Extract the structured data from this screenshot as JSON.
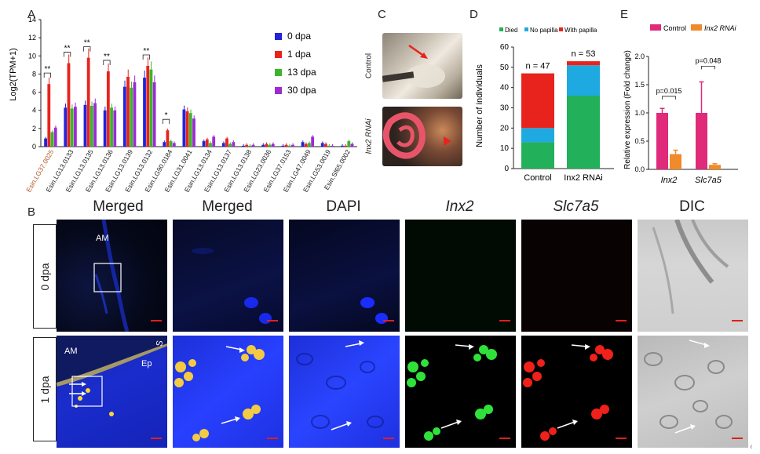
{
  "panel_letters": {
    "a": "A",
    "b": "B",
    "c": "C",
    "d": "D",
    "e": "E"
  },
  "panelA": {
    "ylabel": "Log2(TPM+1)",
    "yticks": [
      "0",
      "2",
      "4",
      "6",
      "8",
      "10",
      "12",
      "14"
    ],
    "legend": [
      "0 dpa",
      "1 dpa",
      "13 dpa",
      "30 dpa"
    ],
    "colors": [
      "#2323d8",
      "#e8231e",
      "#3cb52a",
      "#9c2bd4"
    ]
  },
  "panelC": {
    "top_label": "Control",
    "bottom_label": "Inx2 RNAi"
  },
  "panelD": {
    "ylabel": "Number of individuals",
    "legend": [
      "Died",
      "No papilla",
      "With papilla"
    ],
    "colors": [
      "#22b05a",
      "#1eaae0",
      "#e8231e"
    ],
    "n_labels": [
      "n = 47",
      "n = 53"
    ],
    "yticks": [
      "0",
      "10",
      "20",
      "30",
      "40",
      "50",
      "60"
    ]
  },
  "panelE": {
    "ylabel": "Relative expression (Fold change)",
    "legend": [
      "Control",
      "Inx2 RNAi"
    ],
    "colors": [
      "#e02a7a",
      "#f08a2a"
    ],
    "p_values": [
      "p=0.015",
      "p=0.048"
    ],
    "yticks": [
      "0.0",
      "0.5",
      "1.0",
      "1.5",
      "2.0"
    ],
    "genes": [
      "Inx2",
      "Slc7a5"
    ]
  },
  "panelB": {
    "headers": [
      "Merged",
      "Merged",
      "DAPI",
      "Inx2",
      "Slc7a5",
      "DIC"
    ],
    "rows": [
      "0 dpa",
      "1 dpa"
    ],
    "labels": {
      "am": "AM",
      "s": "S",
      "ep": "Ep"
    }
  },
  "chart_data": [
    {
      "type": "bar",
      "ylabel": "Log2(TPM+1)",
      "ylim": [
        0,
        14
      ],
      "categories": [
        "Esin.LG37.0025",
        "Esin.LG13.0133",
        "Esin.LG13.0135",
        "Esin.LG13.0136",
        "Esin.LG13.0139",
        "Esin.LG13.0132",
        "Esin.LG90.0184",
        "Esin.LG31.0041",
        "Esin.LG13.0134",
        "Esin.LG13.0137",
        "Esin.LG13.0138",
        "Esin.LG23.0036",
        "Esin.LG37.0153",
        "Esin.LG47.0049",
        "Esin.LG53.0019",
        "Esin.Sf65.0002"
      ],
      "series": [
        {
          "name": "0 dpa",
          "values": [
            0.9,
            4.3,
            4.6,
            4.0,
            6.6,
            7.6,
            0.5,
            4.1,
            0.6,
            0.4,
            0.1,
            0.2,
            0.1,
            0.5,
            0.4,
            0.1
          ]
        },
        {
          "name": "1 dpa",
          "values": [
            6.9,
            9.2,
            9.8,
            8.3,
            7.7,
            8.9,
            1.8,
            3.9,
            0.8,
            0.9,
            0.2,
            0.3,
            0.2,
            0.3,
            0.3,
            0.1
          ]
        },
        {
          "name": "13 dpa",
          "values": [
            1.6,
            4.2,
            4.5,
            4.3,
            6.5,
            8.5,
            0.6,
            3.7,
            0.4,
            0.3,
            0.1,
            0.2,
            0.1,
            0.4,
            0.1,
            0.6
          ]
        },
        {
          "name": "30 dpa",
          "values": [
            2.1,
            4.4,
            4.8,
            4.0,
            7.1,
            7.1,
            0.4,
            3.1,
            1.1,
            0.5,
            0.2,
            0.3,
            0.2,
            1.1,
            0.1,
            0.3
          ]
        }
      ],
      "significance": [
        {
          "category": "Esin.LG37.0025",
          "mark": "**"
        },
        {
          "category": "Esin.LG13.0133",
          "mark": "**"
        },
        {
          "category": "Esin.LG13.0135",
          "mark": "**"
        },
        {
          "category": "Esin.LG13.0136",
          "mark": "**"
        },
        {
          "category": "Esin.LG13.0132",
          "mark": "**"
        },
        {
          "category": "Esin.LG90.0184",
          "mark": "*"
        }
      ],
      "legend_position": "top-right"
    },
    {
      "type": "bar",
      "stacked": true,
      "ylabel": "Number of individuals",
      "ylim": [
        0,
        60
      ],
      "categories": [
        "Control",
        "Inx2 RNAi"
      ],
      "series": [
        {
          "name": "Died",
          "values": [
            13,
            36
          ]
        },
        {
          "name": "No papilla",
          "values": [
            7,
            15
          ]
        },
        {
          "name": "With papilla",
          "values": [
            27,
            2
          ]
        }
      ],
      "annotations": [
        "n = 47",
        "n = 53"
      ],
      "legend_position": "top"
    },
    {
      "type": "bar",
      "ylabel": "Relative expression (Fold change)",
      "ylim": [
        0,
        2
      ],
      "categories": [
        "Inx2",
        "Slc7a5"
      ],
      "series": [
        {
          "name": "Control",
          "values": [
            1.0,
            1.0
          ]
        },
        {
          "name": "Inx2 RNAi",
          "values": [
            0.27,
            0.08
          ]
        }
      ],
      "annotations": [
        "p=0.015",
        "p=0.048"
      ],
      "legend_position": "top"
    }
  ]
}
